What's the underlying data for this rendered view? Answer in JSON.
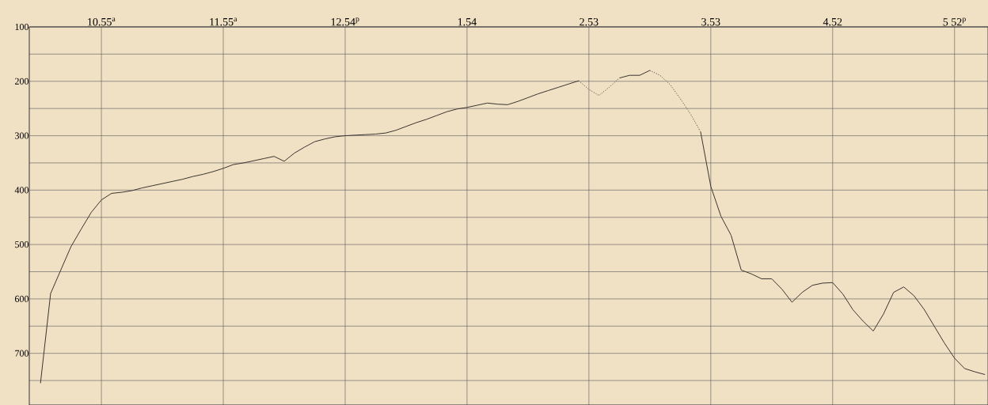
{
  "chart_data": {
    "type": "line",
    "categories": [
      null,
      null,
      null,
      null,
      null,
      null,
      null,
      "10.55$^{a}$",
      null,
      null,
      null,
      null,
      null,
      null,
      null,
      null,
      null,
      null,
      null,
      "11.55$^{a}$",
      null,
      null,
      null,
      null,
      null,
      null,
      null,
      null,
      null,
      null,
      null,
      "12.54$^{p}$",
      null,
      null,
      null,
      null,
      null,
      null,
      null,
      null,
      null,
      null,
      null,
      "1.54",
      null,
      null,
      null,
      null,
      null,
      null,
      null,
      null,
      null,
      null,
      null,
      "2.53",
      null,
      null,
      null,
      null,
      null,
      null,
      null,
      null,
      null,
      null,
      null,
      "3.53",
      null,
      null,
      null,
      null,
      null,
      null,
      null,
      null,
      null,
      null,
      null,
      "4.52",
      null,
      null,
      null,
      null,
      null,
      null,
      null,
      null,
      null,
      null,
      null,
      "5 52$^{p}$",
      null,
      null,
      null
    ],
    "ylim": [
      795,
      100
    ],
    "yticks": [
      100,
      {
        "value": 150,
        "label": null
      },
      200,
      {
        "value": 250,
        "label": null
      },
      300,
      {
        "value": 350,
        "label": null
      },
      400,
      {
        "value": 450,
        "label": null
      },
      500,
      {
        "value": 550,
        "label": null
      },
      600,
      {
        "value": 650,
        "label": null
      },
      700,
      {
        "value": 750,
        "label": null
      }
    ],
    "grid": true,
    "marker": "none",
    "series": [
      {
        "color": "#3a3530",
        "line_style": "solid",
        "values": [
          null,
          755,
          590,
          547,
          504,
          472,
          441,
          418,
          406,
          404,
          401,
          396,
          392,
          388,
          384,
          380,
          375,
          371,
          366,
          360,
          353,
          350,
          346,
          342,
          338,
          347,
          332,
          321,
          311,
          306,
          302,
          300,
          299,
          298,
          297,
          295,
          290,
          283,
          276,
          270,
          263,
          256,
          251,
          248,
          244,
          240,
          242,
          243,
          237,
          230,
          223,
          217,
          211,
          205,
          199,
          null,
          null,
          null,
          null,
          null,
          null,
          null,
          null,
          null,
          null,
          null,
          null,
          null,
          null,
          null,
          null,
          null,
          null,
          null,
          null,
          null,
          null,
          null,
          null,
          null,
          null,
          null,
          null,
          null,
          null,
          null,
          null,
          null,
          null,
          null,
          null,
          null,
          null,
          null,
          null
        ]
      },
      {
        "color": "#3a3530",
        "line_style": "dotted",
        "values": [
          null,
          null,
          null,
          null,
          null,
          null,
          null,
          null,
          null,
          null,
          null,
          null,
          null,
          null,
          null,
          null,
          null,
          null,
          null,
          null,
          null,
          null,
          null,
          null,
          null,
          null,
          null,
          null,
          null,
          null,
          null,
          null,
          null,
          null,
          null,
          null,
          null,
          null,
          null,
          null,
          null,
          null,
          null,
          null,
          null,
          null,
          null,
          null,
          null,
          null,
          null,
          null,
          null,
          null,
          199,
          215,
          226,
          211,
          194,
          null,
          null,
          null,
          null,
          null,
          null,
          null,
          null,
          null,
          null,
          null,
          null,
          null,
          null,
          null,
          null,
          null,
          null,
          null,
          null,
          null,
          null,
          null,
          null,
          null,
          null,
          null,
          null,
          null,
          null,
          null,
          null,
          null,
          null,
          null,
          null
        ]
      },
      {
        "color": "#3a3530",
        "line_style": "solid",
        "values": [
          null,
          null,
          null,
          null,
          null,
          null,
          null,
          null,
          null,
          null,
          null,
          null,
          null,
          null,
          null,
          null,
          null,
          null,
          null,
          null,
          null,
          null,
          null,
          null,
          null,
          null,
          null,
          null,
          null,
          null,
          null,
          null,
          null,
          null,
          null,
          null,
          null,
          null,
          null,
          null,
          null,
          null,
          null,
          null,
          null,
          null,
          null,
          null,
          null,
          null,
          null,
          null,
          null,
          null,
          null,
          null,
          null,
          null,
          194,
          189,
          189,
          180,
          null,
          null,
          null,
          null,
          null,
          null,
          null,
          null,
          null,
          null,
          null,
          null,
          null,
          null,
          null,
          null,
          null,
          null,
          null,
          null,
          null,
          null,
          null,
          null,
          null,
          null,
          null,
          null,
          null,
          null,
          null,
          null,
          null
        ]
      },
      {
        "color": "#3a3530",
        "line_style": "dotted",
        "values": [
          null,
          null,
          null,
          null,
          null,
          null,
          null,
          null,
          null,
          null,
          null,
          null,
          null,
          null,
          null,
          null,
          null,
          null,
          null,
          null,
          null,
          null,
          null,
          null,
          null,
          null,
          null,
          null,
          null,
          null,
          null,
          null,
          null,
          null,
          null,
          null,
          null,
          null,
          null,
          null,
          null,
          null,
          null,
          null,
          null,
          null,
          null,
          null,
          null,
          null,
          null,
          null,
          null,
          null,
          null,
          null,
          null,
          null,
          null,
          null,
          null,
          180,
          189,
          206,
          232,
          260,
          293,
          null,
          null,
          null,
          null,
          null,
          null,
          null,
          null,
          null,
          null,
          null,
          null,
          null,
          null,
          null,
          null,
          null,
          null,
          null,
          null,
          null,
          null,
          null,
          null,
          null,
          null,
          null,
          null
        ]
      },
      {
        "color": "#3a3530",
        "line_style": "solid",
        "values": [
          null,
          null,
          null,
          null,
          null,
          null,
          null,
          null,
          null,
          null,
          null,
          null,
          null,
          null,
          null,
          null,
          null,
          null,
          null,
          null,
          null,
          null,
          null,
          null,
          null,
          null,
          null,
          null,
          null,
          null,
          null,
          null,
          null,
          null,
          null,
          null,
          null,
          null,
          null,
          null,
          null,
          null,
          null,
          null,
          null,
          null,
          null,
          null,
          null,
          null,
          null,
          null,
          null,
          null,
          null,
          null,
          null,
          null,
          null,
          null,
          null,
          null,
          null,
          null,
          null,
          null,
          293,
          393,
          448,
          483,
          547,
          554,
          563,
          563,
          582,
          606,
          588,
          575,
          571,
          570,
          591,
          620,
          641,
          659,
          628,
          588,
          578,
          594,
          619,
          650,
          681,
          709,
          728,
          734,
          739
        ]
      }
    ]
  }
}
